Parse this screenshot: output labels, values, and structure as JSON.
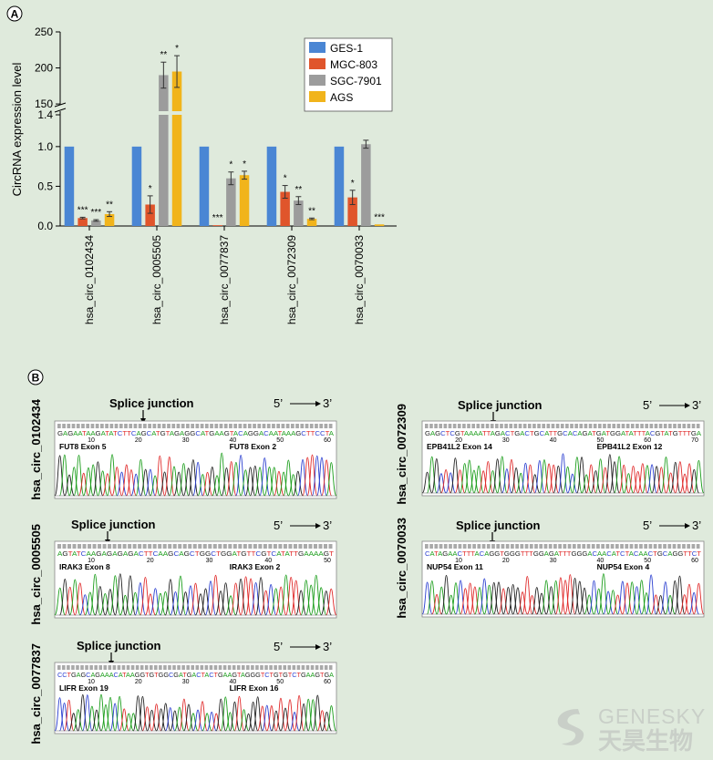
{
  "panel_a": {
    "label": "A"
  },
  "panel_b": {
    "label": "B"
  },
  "chart_data": {
    "type": "bar",
    "ylabel": "CircRNA expression level",
    "y_lower": {
      "range": [
        0,
        1.4
      ],
      "ticks": [
        "0.0",
        "0.5",
        "1.0",
        "1.4"
      ]
    },
    "y_upper": {
      "range": [
        140,
        250
      ],
      "ticks": [
        "150",
        "200",
        "250"
      ]
    },
    "axis_break": true,
    "legend_position": "top-right",
    "categories": [
      "hsa_circ_0102434",
      "hsa_circ_0005505",
      "hsa_circ_0077837",
      "hsa_circ_0072309",
      "hsa_circ_0070033"
    ],
    "series": [
      {
        "name": "GES-1",
        "color": "#4a86d4",
        "values": [
          1.0,
          1.0,
          1.0,
          1.0,
          1.0
        ],
        "errors": [
          0,
          0,
          0,
          0,
          0
        ],
        "sig": [
          "",
          "",
          "",
          "",
          ""
        ]
      },
      {
        "name": "MGC-803",
        "color": "#e0552b",
        "values": [
          0.1,
          0.27,
          0.01,
          0.43,
          0.36
        ],
        "errors": [
          0.01,
          0.11,
          0,
          0.08,
          0.09
        ],
        "sig": [
          "***",
          "*",
          "***",
          "*",
          "*"
        ]
      },
      {
        "name": "SGC-7901",
        "color": "#9c9c9c",
        "values": [
          0.07,
          190,
          0.6,
          0.32,
          1.03
        ],
        "errors": [
          0.01,
          18,
          0.08,
          0.05,
          0.05
        ],
        "sig": [
          "***",
          "**",
          "*",
          "**",
          ""
        ]
      },
      {
        "name": "AGS",
        "color": "#f1b41b",
        "values": [
          0.15,
          195,
          0.64,
          0.09,
          0.02
        ],
        "errors": [
          0.03,
          22,
          0.05,
          0.01,
          0
        ],
        "sig": [
          "**",
          "*",
          "*",
          "**",
          "***"
        ]
      }
    ]
  },
  "chromatograms": [
    {
      "id": "hsa_circ_0102434",
      "title": "Splice junction",
      "direction_start": "5’",
      "direction_end": "3’",
      "sequence": "GAGAATAAGATATCTTCAGCATGTAGAGGCATGAAGTACAGGACAATAAAGCTTCCTA",
      "numbers": [
        "10",
        "20",
        "30",
        "40",
        "50",
        "60"
      ],
      "exon_left": "FUT8 Exon 5",
      "exon_right": "FUT8 Exon 2"
    },
    {
      "id": "hsa_circ_0072309",
      "title": "Splice junction",
      "direction_start": "5’",
      "direction_end": "3’",
      "sequence": "GAGCTCGTAAAATTAGACTGACTGCATTGCACAGATGATGGATATTTACGTATGTTTGA",
      "numbers": [
        "20",
        "30",
        "40",
        "50",
        "60",
        "70"
      ],
      "exon_left": "EPB41L2 Exon 14",
      "exon_right": "EPB41L2 Exon 12"
    },
    {
      "id": "hsa_circ_0005505",
      "title": "Splice junction",
      "direction_start": "5’",
      "direction_end": "3’",
      "sequence": "AGTATCAAGAGAGAGACTTCAAGCAGCTGGCTGGATGTTCGTCATATTGAAAAGT",
      "numbers": [
        "10",
        "20",
        "30",
        "40",
        "50"
      ],
      "exon_left": "IRAK3 Exon 8",
      "exon_right": "IRAK3 Exon 2"
    },
    {
      "id": "hsa_circ_0070033",
      "title": "Splice junction",
      "direction_start": "5’",
      "direction_end": "3’",
      "sequence": "CATAGAACTTTACAGGTGGGTTTGGAGATTTGGGACAACATCTACAACTGCAGGTTCT",
      "numbers": [
        "10",
        "20",
        "30",
        "40",
        "50",
        "60"
      ],
      "exon_left": "NUP54 Exon 11",
      "exon_right": "NUP54 Exon 4"
    },
    {
      "id": "hsa_circ_0077837",
      "title": "Splice junction",
      "direction_start": "5’",
      "direction_end": "3’",
      "sequence": "CCTGAGCAGAAACATAAGGTGTGGCGATGACTACTGAAGTAGGGTCTGTGTCTGAAGTGA",
      "numbers": [
        "10",
        "20",
        "30",
        "40",
        "50",
        "60"
      ],
      "exon_left": "LIFR Exon 19",
      "exon_right": "LIFR Exon 16"
    }
  ],
  "watermark": {
    "en": "GENESKY",
    "cn": "天昊生物"
  }
}
